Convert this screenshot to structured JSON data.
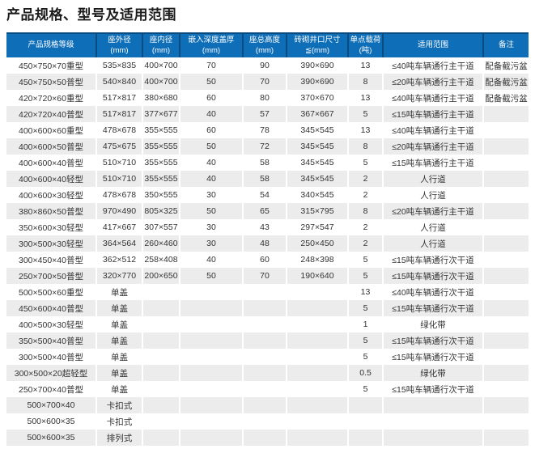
{
  "page": {
    "title": "产品规格、型号及适用范围"
  },
  "table": {
    "columns": [
      {
        "label": "产品规格等级",
        "sub": ""
      },
      {
        "label": "座外径",
        "sub": "(mm)"
      },
      {
        "label": "座内径",
        "sub": "(mm)"
      },
      {
        "label": "嵌入深度盖厚",
        "sub": "(mm)"
      },
      {
        "label": "座总高度",
        "sub": "(mm)"
      },
      {
        "label": "砖砌井口尺寸",
        "sub": "≦(mm)"
      },
      {
        "label": "单点载荷",
        "sub": "(吨)"
      },
      {
        "label": "适用范围",
        "sub": ""
      },
      {
        "label": "备注",
        "sub": ""
      }
    ],
    "rows": [
      [
        "450×750×70重型",
        "535×835",
        "400×700",
        "70",
        "90",
        "390×690",
        "13",
        "≤40吨车辆通行主干道",
        "配备截污盆"
      ],
      [
        "450×750×50普型",
        "540×840",
        "400×700",
        "50",
        "70",
        "390×690",
        "8",
        "≤20吨车辆通行主干道",
        "配备截污盆"
      ],
      [
        "420×720×60重型",
        "517×817",
        "380×680",
        "60",
        "80",
        "370×670",
        "13",
        "≤40吨车辆通行主干道",
        "配备截污盆"
      ],
      [
        "420×720×40普型",
        "517×817",
        "377×677",
        "40",
        "57",
        "367×667",
        "5",
        "≤15吨车辆通行主干道",
        ""
      ],
      [
        "400×600×60重型",
        "478×678",
        "355×555",
        "60",
        "78",
        "345×545",
        "13",
        "≤40吨车辆通行主干道",
        ""
      ],
      [
        "400×600×50普型",
        "475×675",
        "355×555",
        "50",
        "72",
        "345×545",
        "8",
        "≤20吨车辆通行主干道",
        ""
      ],
      [
        "400×600×40普型",
        "510×710",
        "355×555",
        "40",
        "58",
        "345×545",
        "5",
        "≤15吨车辆通行主干道",
        ""
      ],
      [
        "400×600×40轻型",
        "510×710",
        "355×555",
        "40",
        "58",
        "345×545",
        "2",
        "人行道",
        ""
      ],
      [
        "400×600×30轻型",
        "478×678",
        "350×555",
        "30",
        "54",
        "340×545",
        "2",
        "人行道",
        ""
      ],
      [
        "380×860×50普型",
        "970×490",
        "805×325",
        "50",
        "65",
        "315×795",
        "8",
        "≤20吨车辆通行主干道",
        ""
      ],
      [
        "350×600×30轻型",
        "417×667",
        "307×557",
        "30",
        "43",
        "297×547",
        "2",
        "人行道",
        ""
      ],
      [
        "300×500×30轻型",
        "364×564",
        "260×460",
        "30",
        "48",
        "250×450",
        "2",
        "人行道",
        ""
      ],
      [
        "300×450×40普型",
        "362×512",
        "258×408",
        "40",
        "60",
        "248×398",
        "5",
        "≤15吨车辆通行次干道",
        ""
      ],
      [
        "250×700×50普型",
        "320×770",
        "200×650",
        "50",
        "70",
        "190×640",
        "5",
        "≤15吨车辆通行次干道",
        ""
      ],
      [
        "500×500×60重型",
        "单盖",
        "",
        "",
        "",
        "",
        "13",
        "≤40吨车辆通行次干道",
        ""
      ],
      [
        "450×600×40普型",
        "单盖",
        "",
        "",
        "",
        "",
        "5",
        "≤15吨车辆通行次干道",
        ""
      ],
      [
        "400×500×30轻型",
        "单盖",
        "",
        "",
        "",
        "",
        "1",
        "绿化带",
        ""
      ],
      [
        "350×500×40普型",
        "单盖",
        "",
        "",
        "",
        "",
        "5",
        "≤15吨车辆通行次干道",
        ""
      ],
      [
        "300×500×40普型",
        "单盖",
        "",
        "",
        "",
        "",
        "5",
        "≤15吨车辆通行次干道",
        ""
      ],
      [
        "300×500×20超轻型",
        "单盖",
        "",
        "",
        "",
        "",
        "0.5",
        "绿化带",
        ""
      ],
      [
        "250×700×40普型",
        "单盖",
        "",
        "",
        "",
        "",
        "5",
        "≤15吨车辆通行次干道",
        ""
      ],
      [
        "500×700×40",
        "卡扣式",
        "",
        "",
        "",
        "",
        "",
        "",
        ""
      ],
      [
        "500×600×35",
        "卡扣式",
        "",
        "",
        "",
        "",
        "",
        "",
        ""
      ],
      [
        "500×600×35",
        "排列式",
        "",
        "",
        "",
        "",
        "",
        "",
        ""
      ]
    ]
  },
  "colors": {
    "header_bg": "#0e6eb8",
    "header_divider": "#0a4c80",
    "header_text": "#ffffff",
    "row_alt_bg": "#ececec",
    "body_text": "#333333",
    "title_text": "#1b1b1b"
  }
}
